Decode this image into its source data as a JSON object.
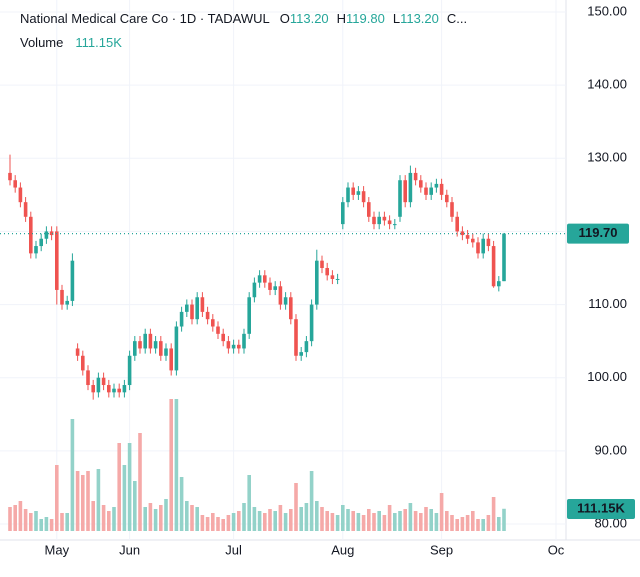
{
  "chart_data": {
    "type": "candlestick",
    "title": "National Medical Care Co · 1D · TADAWUL",
    "header": {
      "open_label": "O",
      "open": "113.20",
      "high_label": "H",
      "high": "119.80",
      "low_label": "L",
      "low": "113.20",
      "close_label": "C..."
    },
    "categories": [
      null,
      null,
      null,
      null,
      null,
      null,
      null,
      null,
      null,
      "May",
      null,
      null,
      null,
      null,
      null,
      null,
      null,
      null,
      null,
      null,
      null,
      null,
      null,
      "Jun",
      null,
      null,
      null,
      null,
      null,
      null,
      null,
      null,
      null,
      null,
      null,
      null,
      null,
      null,
      null,
      null,
      null,
      null,
      null,
      "Jul",
      null,
      null,
      null,
      null,
      null,
      null,
      null,
      null,
      null,
      null,
      null,
      null,
      null,
      null,
      null,
      null,
      null,
      null,
      null,
      null,
      "Aug",
      null,
      null,
      null,
      null,
      null,
      null,
      null,
      null,
      null,
      null,
      null,
      null,
      null,
      null,
      null,
      null,
      null,
      null,
      "Sep",
      null,
      null,
      null,
      null,
      null,
      null,
      null,
      null,
      null,
      null,
      null,
      null,
      null,
      null,
      null,
      null,
      null,
      null,
      null,
      null,
      null,
      "Oc"
    ],
    "open": [
      128,
      127,
      126,
      124,
      122,
      117,
      118,
      119,
      120,
      120,
      112,
      110,
      110.5,
      104,
      103,
      101,
      99,
      98,
      100,
      99,
      98,
      98.5,
      98,
      99,
      103,
      105,
      104,
      106,
      104,
      105,
      103,
      104,
      101,
      107,
      109,
      110,
      108,
      111,
      109,
      108,
      107,
      106,
      105,
      104,
      104.5,
      104,
      106,
      111,
      113,
      114,
      113,
      112,
      112.5,
      110,
      111,
      108,
      103,
      103.5,
      105,
      110,
      116,
      115,
      114,
      113.5,
      121,
      124,
      126,
      125,
      125.5,
      124,
      122,
      121,
      122,
      121.5,
      121,
      122,
      127,
      124,
      128,
      127,
      126,
      125,
      126,
      126.5,
      125,
      124,
      122,
      120,
      119.5,
      119,
      118.5,
      117,
      119,
      118,
      112.5,
      113.2,
      null,
      null,
      null,
      null,
      null,
      null,
      null,
      null,
      null,
      null
    ],
    "high": [
      130.5,
      127.7,
      126.7,
      124.7,
      122.7,
      118.7,
      119.7,
      120.7,
      120.7,
      120.7,
      112.7,
      111.2,
      117,
      104.7,
      103.7,
      101.7,
      99.7,
      100.7,
      100.7,
      99.7,
      99.2,
      99.2,
      99.7,
      103.7,
      105.7,
      105.7,
      106.7,
      106.7,
      105.7,
      105.7,
      104.7,
      104.7,
      107.7,
      109.7,
      110.7,
      110.7,
      111.7,
      111.7,
      109.7,
      108.7,
      107.7,
      106.7,
      105.7,
      105.2,
      105.2,
      106.7,
      111.7,
      113.7,
      114.7,
      114.7,
      113.7,
      113.2,
      113.2,
      111.7,
      111.7,
      108.7,
      104.2,
      105.7,
      110.7,
      117.5,
      116.7,
      115.7,
      114.7,
      114.2,
      124.7,
      126.7,
      126.7,
      126.2,
      126.2,
      124.7,
      122.7,
      122.7,
      122.7,
      122.2,
      121.7,
      127.7,
      127.7,
      129,
      128.7,
      127.7,
      126.7,
      126.7,
      127.2,
      127.2,
      125.7,
      124.7,
      122.7,
      120.7,
      120.2,
      119.7,
      119.2,
      119.7,
      119.7,
      118.7,
      113.9,
      119.8,
      null,
      null,
      null,
      null,
      null,
      null,
      null,
      null,
      null,
      null
    ],
    "low": [
      126.3,
      125.3,
      123.3,
      121.3,
      116.3,
      116.3,
      117.3,
      118.3,
      118.8,
      110,
      109.3,
      109.3,
      109.8,
      102.3,
      100.3,
      98.3,
      97,
      97.3,
      98.3,
      97.3,
      97.3,
      97.3,
      97.3,
      98.3,
      102.3,
      103.3,
      103.3,
      103.3,
      103.3,
      102.3,
      102.3,
      100.3,
      100.3,
      106.3,
      108.3,
      107.3,
      107.3,
      108.3,
      107.3,
      106.3,
      105.3,
      104.3,
      103.3,
      103.3,
      103.3,
      103.3,
      105.3,
      110.3,
      112.3,
      112.3,
      111.3,
      111.3,
      109.3,
      109.3,
      107.3,
      102.3,
      102.3,
      102.8,
      104.3,
      109.3,
      114.3,
      113.3,
      112.8,
      112.8,
      120.3,
      123.3,
      124.3,
      124.3,
      123.3,
      121.3,
      120.3,
      120.3,
      120.8,
      120.3,
      120.3,
      121.3,
      123.3,
      123.3,
      126.3,
      125.3,
      124.3,
      124.3,
      125.3,
      124.3,
      123.3,
      121.3,
      119.3,
      118.8,
      118.3,
      117.8,
      116.3,
      116.3,
      117.3,
      112.3,
      111.8,
      113.2,
      null,
      null,
      null,
      null,
      null,
      null,
      null,
      null,
      null,
      null
    ],
    "close": [
      127,
      126,
      124,
      122,
      117,
      118,
      119,
      120,
      119.5,
      112,
      110,
      110.5,
      116,
      103,
      101,
      99,
      98,
      100,
      99,
      98,
      98.5,
      98,
      99,
      103,
      105,
      104,
      106,
      104,
      105,
      103,
      104,
      101,
      107,
      109,
      110,
      108,
      111,
      109,
      108,
      107,
      106,
      105,
      104,
      104.5,
      104,
      106,
      111,
      113,
      114,
      113,
      112,
      112.5,
      110,
      111,
      108,
      103,
      103.5,
      105,
      110,
      116,
      115,
      114,
      113.5,
      113.5,
      124,
      126,
      125,
      125.5,
      124,
      122,
      121,
      122,
      121.5,
      121,
      121,
      127,
      124,
      128,
      127,
      126,
      125,
      126,
      126.5,
      125,
      124,
      122,
      120,
      119.5,
      119,
      118.5,
      117,
      119,
      118,
      112.5,
      113.2,
      119.7,
      null,
      null,
      null,
      null,
      null,
      null,
      null,
      null,
      null,
      null
    ],
    "volume": {
      "name": "Volume",
      "last_label": "111.15K",
      "values": [
        120000,
        130000,
        150000,
        110000,
        90000,
        100000,
        60000,
        70000,
        60000,
        330000,
        90000,
        90000,
        560000,
        300000,
        280000,
        300000,
        150000,
        310000,
        130000,
        100000,
        120000,
        440000,
        330000,
        440000,
        250000,
        490000,
        120000,
        140000,
        110000,
        130000,
        160000,
        660000,
        660000,
        270000,
        150000,
        130000,
        120000,
        80000,
        70000,
        90000,
        70000,
        60000,
        80000,
        90000,
        100000,
        140000,
        280000,
        120000,
        100000,
        90000,
        110000,
        100000,
        130000,
        90000,
        110000,
        240000,
        120000,
        140000,
        300000,
        150000,
        120000,
        100000,
        90000,
        80000,
        130000,
        110000,
        100000,
        90000,
        80000,
        110000,
        90000,
        100000,
        80000,
        130000,
        90000,
        100000,
        110000,
        140000,
        100000,
        90000,
        120000,
        110000,
        90000,
        190000,
        100000,
        80000,
        60000,
        70000,
        80000,
        100000,
        60000,
        60000,
        80000,
        170000,
        70000,
        111150,
        null,
        null,
        null,
        null,
        null,
        null,
        null,
        null,
        null,
        null
      ]
    },
    "last_price": {
      "value": 119.7,
      "label": "119.70"
    },
    "ylim": [
      80,
      150
    ],
    "yticks": [
      {
        "value": 80,
        "label": "80.00"
      },
      {
        "value": 90,
        "label": "90.00"
      },
      {
        "value": 100,
        "label": "100.00"
      },
      {
        "value": 110,
        "label": "110.00"
      },
      {
        "value": 120,
        "label": "120.00"
      },
      {
        "value": 130,
        "label": "130.00"
      },
      {
        "value": 140,
        "label": "140.00"
      },
      {
        "value": 150,
        "label": "150.00"
      }
    ],
    "up_color": "#26a69a",
    "down_color": "#ef5350",
    "up_volume_color": "#93d2c9",
    "down_volume_color": "#f5a9a8",
    "grid": true
  }
}
